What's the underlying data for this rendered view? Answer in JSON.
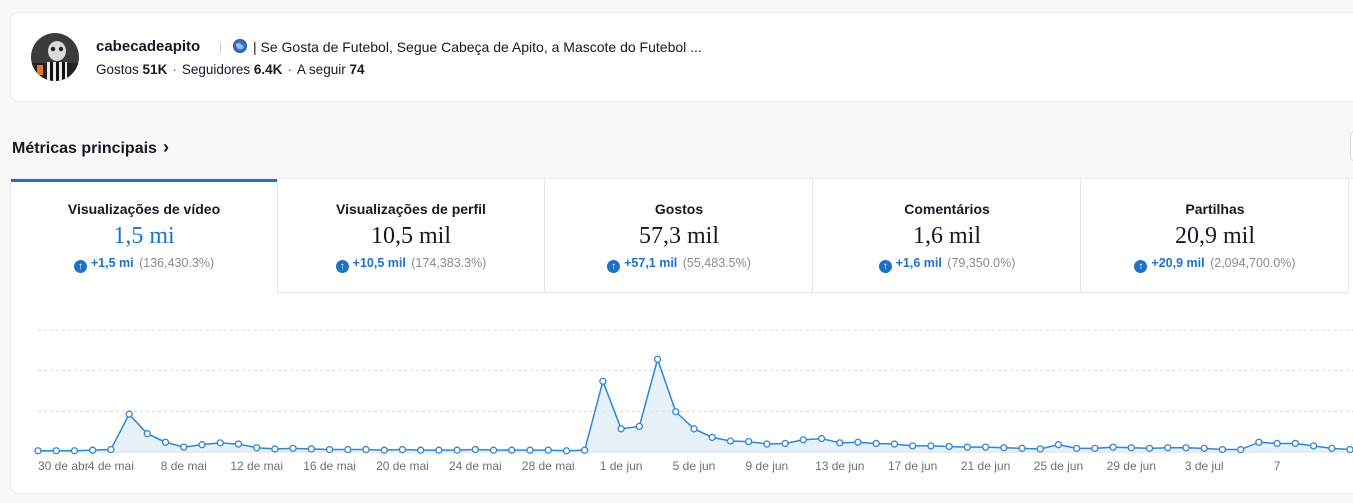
{
  "profile": {
    "username": "cabecadeapito",
    "bio": "| Se Gosta de Futebol, Segue Cabeça de Apito, a Mascote do Futebol ...",
    "likes_label": "Gostos",
    "likes_value": "51K",
    "followers_label": "Seguidores",
    "followers_value": "6.4K",
    "following_label": "A seguir",
    "following_value": "74",
    "avatar_icon": "mascot-avatar",
    "bio_icon": "globe-icon"
  },
  "section": {
    "title": "Métricas principais",
    "chevron": "›"
  },
  "tabs": [
    {
      "label": "Visualizações de vídeo",
      "value": "1,5 mi",
      "delta": "+1,5 mi",
      "pct": "(136,430.3%)",
      "active": true
    },
    {
      "label": "Visualizações de perfil",
      "value": "10,5 mil",
      "delta": "+10,5 mil",
      "pct": "(174,383.3%)",
      "active": false
    },
    {
      "label": "Gostos",
      "value": "57,3 mil",
      "delta": "+57,1 mil",
      "pct": "(55,483.5%)",
      "active": false
    },
    {
      "label": "Comentários",
      "value": "1,6 mil",
      "delta": "+1,6 mil",
      "pct": "(79,350.0%)",
      "active": false
    },
    {
      "label": "Partilhas",
      "value": "20,9 mil",
      "delta": "+20,9 mil",
      "pct": "(2,094,700.0%)",
      "active": false
    }
  ],
  "colors": {
    "accent": "#1d72c8",
    "line": "#2f86d6",
    "area": "#dcebf8",
    "grid": "#d8d8d8"
  },
  "chart_data": {
    "type": "area",
    "x_tick_labels": [
      "30 de abr",
      "4 de mai",
      "8 de mai",
      "12 de mai",
      "16 de mai",
      "20 de mai",
      "24 de mai",
      "28 de mai",
      "1 de jun",
      "5 de jun",
      "9 de jun",
      "13 de jun",
      "17 de jun",
      "21 de jun",
      "25 de jun",
      "29 de jun",
      "3 de jul",
      "7"
    ],
    "y_scale_max": 100,
    "grid_lines": 4,
    "values": [
      1,
      1,
      1,
      1.5,
      2,
      31,
      15,
      8,
      4,
      6,
      7.5,
      6.5,
      3.5,
      2.5,
      3,
      2.5,
      2,
      2,
      2,
      1.5,
      2,
      1.5,
      1.5,
      1.5,
      2,
      1.5,
      1.5,
      1.5,
      1.5,
      1,
      1.5,
      58,
      19,
      21,
      76,
      33,
      19,
      12,
      9,
      8.5,
      6.5,
      7,
      10,
      11,
      7.5,
      8,
      7,
      6.5,
      5,
      5,
      4.5,
      4,
      4,
      3.5,
      3,
      2.5,
      6,
      3,
      3,
      4,
      3.5,
      3,
      3.5,
      3.5,
      3,
      2,
      2,
      8,
      7,
      7,
      5,
      3,
      2
    ]
  }
}
